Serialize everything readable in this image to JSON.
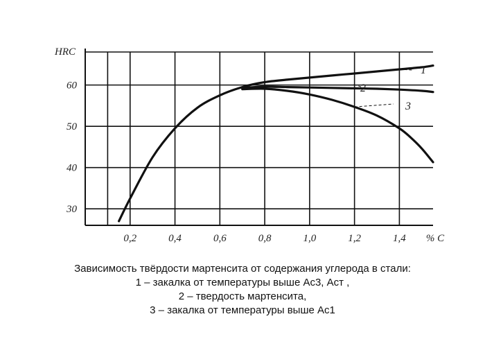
{
  "chart_data": {
    "type": "line",
    "ylabel": "HRC",
    "xlabel": "% C",
    "x_ticks": [
      "0,2",
      "0,4",
      "0,6",
      "0,8",
      "1,0",
      "1,2",
      "1,4"
    ],
    "y_ticks": [
      "30",
      "40",
      "50",
      "60"
    ],
    "xlim": [
      0.0,
      1.55
    ],
    "ylim": [
      26,
      68
    ],
    "grid": true,
    "series": [
      {
        "name": "1",
        "x": [
          0.15,
          0.2,
          0.3,
          0.4,
          0.5,
          0.6,
          0.7,
          0.8,
          0.9,
          1.0,
          1.1,
          1.2,
          1.3,
          1.4,
          1.5,
          1.55
        ],
        "values": [
          27,
          32.5,
          42.5,
          49.5,
          54.5,
          57.5,
          59.5,
          60.7,
          61.3,
          61.8,
          62.3,
          62.8,
          63.3,
          63.8,
          64.3,
          64.7
        ]
      },
      {
        "name": "2",
        "x": [
          0.7,
          0.8,
          0.9,
          1.0,
          1.1,
          1.2,
          1.3,
          1.4,
          1.5,
          1.55
        ],
        "values": [
          59.3,
          59.6,
          59.5,
          59.4,
          59.3,
          59.2,
          59.1,
          58.9,
          58.6,
          58.3
        ]
      },
      {
        "name": "3",
        "x": [
          0.7,
          0.8,
          0.9,
          1.0,
          1.1,
          1.2,
          1.3,
          1.4,
          1.45,
          1.5,
          1.55
        ],
        "values": [
          59.0,
          59.1,
          58.6,
          57.7,
          56.4,
          54.7,
          52.6,
          49.5,
          47.3,
          44.6,
          41.3
        ]
      }
    ],
    "curve_labels": [
      "1",
      "2",
      "3"
    ]
  },
  "caption": {
    "line1": "Зависимость твёрдости мартенсита от содержания углерода в стали:",
    "line2": "1 – закалка от температуры выше Ас3, Аст ,",
    "line3": "2 – твердость мартенсита,",
    "line4": "3 – закалка от температуры выше Ас1"
  }
}
